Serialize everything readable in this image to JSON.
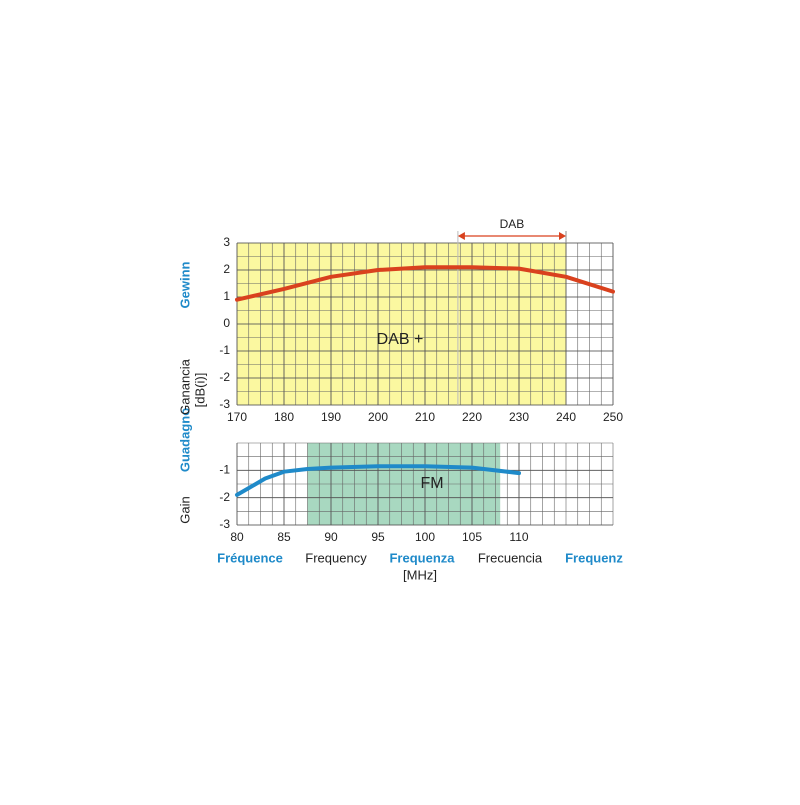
{
  "chart_data": [
    {
      "type": "line",
      "xlim": [
        170,
        250
      ],
      "xticks": [
        170,
        180,
        190,
        200,
        210,
        220,
        230,
        240,
        250
      ],
      "ylim": [
        -3,
        3
      ],
      "yticks": [
        3,
        2,
        1,
        0,
        -1,
        -2,
        -3
      ],
      "band": {
        "x": [
          170,
          240
        ],
        "color": "#fbf8a0"
      },
      "annotation": "DAB +",
      "range_annotation": {
        "label": "DAB",
        "x": [
          217,
          240
        ],
        "color": "#d9411e"
      },
      "series": [
        {
          "color": "#d9411e",
          "x": [
            170,
            180,
            190,
            200,
            210,
            220,
            230,
            240,
            250
          ],
          "values": [
            0.9,
            1.3,
            1.75,
            2.0,
            2.1,
            2.1,
            2.05,
            1.75,
            1.2
          ]
        }
      ]
    },
    {
      "type": "line",
      "xlim": [
        80,
        120
      ],
      "xticks": [
        80,
        85,
        90,
        95,
        100,
        105,
        110
      ],
      "ylim": [
        -3,
        0
      ],
      "yticks": [
        -1,
        -2,
        -3
      ],
      "band": {
        "x": [
          87.5,
          108
        ],
        "color": "#a8d8c0"
      },
      "annotation": "FM",
      "series": [
        {
          "color": "#1f8ac9",
          "x": [
            80,
            82,
            83,
            85,
            87.5,
            90,
            95,
            100,
            105,
            110
          ],
          "values": [
            -1.9,
            -1.5,
            -1.3,
            -1.05,
            -0.95,
            -0.9,
            -0.85,
            -0.85,
            -0.9,
            -1.1
          ]
        }
      ]
    }
  ],
  "y_labels": [
    {
      "text": "Gain",
      "color": "#222222"
    },
    {
      "text": "Guadagno",
      "color": "#1f8ac9"
    },
    {
      "text": "Ganancia",
      "color": "#222222"
    },
    {
      "text": "[dB(i)]",
      "color": "#222222"
    },
    {
      "text": "Gewinn",
      "color": "#1f8ac9"
    }
  ],
  "x_labels": [
    {
      "text": "Fréquence",
      "color": "#1f8ac9"
    },
    {
      "text": "Frequency",
      "color": "#222222"
    },
    {
      "text": "Frequenza",
      "color": "#1f8ac9"
    },
    {
      "text": "Frecuencia",
      "color": "#222222"
    },
    {
      "text": "Frequenz",
      "color": "#1f8ac9"
    },
    {
      "text": "[MHz]",
      "color": "#222222"
    }
  ]
}
